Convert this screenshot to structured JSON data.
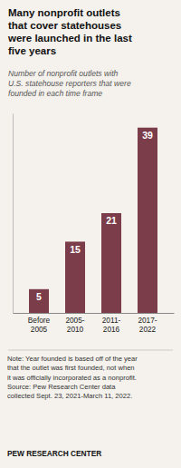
{
  "chart_data": {
    "type": "bar",
    "title": "Many nonprofit outlets\nthat cover statehouses\nwere launched in the last\nfive years",
    "subtitle": "Number of nonprofit outlets with\nU.S. statehouse reporters that were\nfounded in each time frame",
    "categories": [
      "Before\n2005",
      "2005-\n2010",
      "2011-\n2016",
      "2017-\n2022"
    ],
    "values": [
      5,
      15,
      21,
      39
    ],
    "color": "#7b3d4a",
    "ylim": [
      0,
      42
    ],
    "yticks": [],
    "tick_labels": "x",
    "data_labels": true,
    "grid": false,
    "note": "Note: Year founded is based off of the year\nthat the outlet was first founded, not when\nit was officially incorporated as a nonprofit.\nSource: Pew Research Center data\ncollected Sept. 23, 2021-March 11, 2022.",
    "source": "PEW RESEARCH CENTER"
  }
}
